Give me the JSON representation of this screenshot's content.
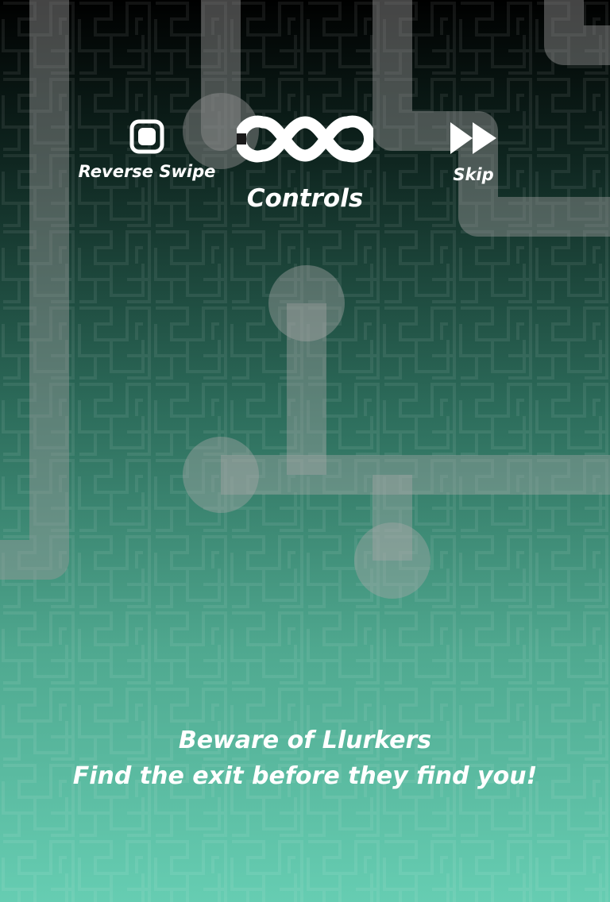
{
  "hud": {
    "reverse_swipe_label": "Reverse Swipe",
    "controls_label": "Controls",
    "skip_label": "Skip"
  },
  "icons": {
    "reverse_swipe": "rounded-square-icon",
    "controls": "infinity-icon",
    "skip": "fast-forward-icon"
  },
  "message": {
    "line1": "Beware of Llurkers",
    "line2": "Find the exit before they find you!"
  },
  "colors": {
    "background_top": "#000000",
    "background_bottom": "#66cdb2",
    "path": "#9a9a9a",
    "text": "#ffffff"
  }
}
